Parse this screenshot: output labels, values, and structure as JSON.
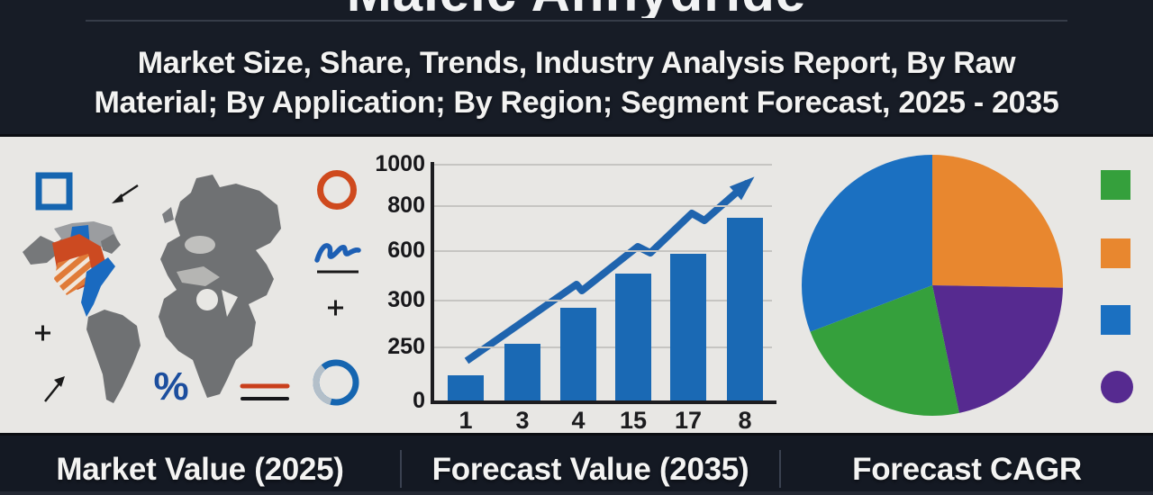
{
  "header": {
    "title": "Maleic Anhydride",
    "subtitle_line1": "Market Size, Share, Trends, Industry Analysis Report, By Raw",
    "subtitle_line2": "Material; By Application; By Region; Segment Forecast, 2025 - 2035"
  },
  "footer": {
    "items": [
      {
        "label": "Market Value (2025)"
      },
      {
        "label": "Forecast Value (2035)"
      },
      {
        "label": "Forecast CAGR"
      }
    ]
  },
  "colors": {
    "header_bg": "#171c26",
    "footer_bg": "#141923",
    "panel_bg": "#e8e7e4",
    "bar_blue": "#1a69b4",
    "trend_blue": "#1f64ae",
    "pie_blue": "#1b70c1",
    "pie_orange": "#e8872f",
    "pie_purple": "#562a90",
    "pie_green": "#35a03c",
    "accent_red": "#cc3b1c",
    "icon_blue": "#1565b0",
    "map_gray": "#6f7173",
    "axis_dark": "#1d1d20"
  },
  "icons": [
    "square-outline-icon",
    "arrow-down-left-icon",
    "circle-outline-icon",
    "squiggle-icon",
    "plus-icon",
    "percent-icon",
    "double-line-icon",
    "donut-icon",
    "arrow-up-right-icon",
    "world-map"
  ],
  "chart_data": [
    {
      "type": "bar",
      "title": "",
      "xlabel": "",
      "ylabel": "",
      "x_labels": [
        "1",
        "3",
        "4",
        "15",
        "17",
        "8"
      ],
      "y_tick_labels": [
        "1000",
        "800",
        "600",
        "300",
        "250",
        "0"
      ],
      "values": [
        105,
        240,
        390,
        535,
        620,
        770
      ],
      "ylim": [
        0,
        1000
      ],
      "grid": true,
      "bar_color": "#1a69b4",
      "trend_arrow": {
        "color": "#1f64ae",
        "points": [
          [
            518,
            249
          ],
          [
            640,
            164
          ],
          [
            646,
            171
          ],
          [
            708,
            122
          ],
          [
            722,
            129
          ],
          [
            768,
            85
          ],
          [
            782,
            93
          ],
          [
            830,
            51
          ]
        ]
      }
    },
    {
      "type": "pie",
      "title": "",
      "start_at_top": true,
      "clockwise": true,
      "slices": [
        {
          "name": "orange-segment",
          "value": 25.3,
          "color": "#e8872f"
        },
        {
          "name": "purple-segment",
          "value": 21.4,
          "color": "#562a90"
        },
        {
          "name": "green-segment",
          "value": 22.5,
          "color": "#35a03c"
        },
        {
          "name": "blue-segment",
          "value": 30.8,
          "color": "#1b70c1"
        }
      ],
      "legend": [
        {
          "shape": "square",
          "color": "#35a03c",
          "name": "legend-green"
        },
        {
          "shape": "square",
          "color": "#e8872f",
          "name": "legend-orange"
        },
        {
          "shape": "square",
          "color": "#1b70c1",
          "name": "legend-blue"
        },
        {
          "shape": "circle",
          "color": "#562a90",
          "name": "legend-purple"
        }
      ],
      "legend_position": "right"
    }
  ]
}
